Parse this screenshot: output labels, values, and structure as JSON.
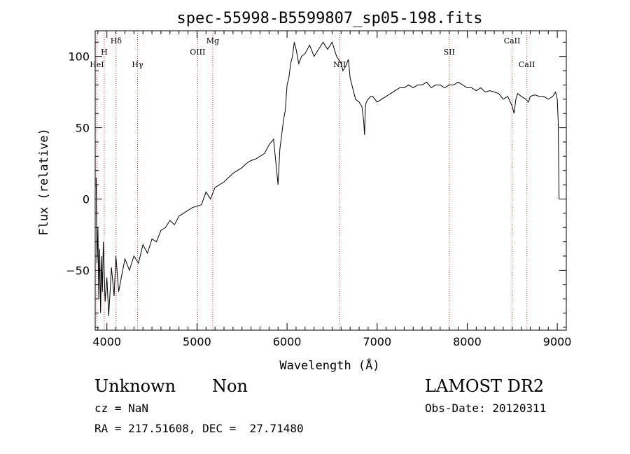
{
  "chart_data": {
    "type": "line",
    "title": "spec-55998-B5599807_sp05-198.fits",
    "xlabel": "Wavelength (Å)",
    "ylabel": "Flux (relative)",
    "xlim": [
      3870,
      9100
    ],
    "ylim": [
      -92,
      118
    ],
    "xticks": [
      4000,
      5000,
      6000,
      7000,
      8000,
      9000
    ],
    "yticks": [
      -50,
      0,
      50,
      100
    ],
    "grid": false,
    "series": [
      {
        "x": [
          3880,
          3890,
          3900,
          3910,
          3920,
          3930,
          3940,
          3950,
          3960,
          3980,
          4000,
          4020,
          4050,
          4080,
          4100,
          4130,
          4160,
          4200,
          4250,
          4300,
          4350,
          4400,
          4450,
          4500,
          4550,
          4600,
          4650,
          4700,
          4750,
          4800,
          4850,
          4900,
          4950,
          5000,
          5050,
          5100,
          5150,
          5200,
          5250,
          5300,
          5350,
          5400,
          5450,
          5500,
          5550,
          5600,
          5650,
          5700,
          5750,
          5800,
          5850,
          5900,
          5920,
          5940,
          5960,
          5980,
          6000,
          6020,
          6040,
          6060,
          6080,
          6100,
          6130,
          6160,
          6200,
          6250,
          6300,
          6350,
          6400,
          6450,
          6500,
          6550,
          6600,
          6620,
          6650,
          6680,
          6700,
          6720,
          6740,
          6760,
          6800,
          6830,
          6850,
          6860,
          6870,
          6880,
          6900,
          6930,
          6950,
          7000,
          7050,
          7100,
          7150,
          7200,
          7250,
          7300,
          7350,
          7400,
          7450,
          7500,
          7550,
          7600,
          7650,
          7700,
          7750,
          7800,
          7850,
          7900,
          7950,
          8000,
          8050,
          8100,
          8150,
          8200,
          8250,
          8300,
          8350,
          8400,
          8450,
          8500,
          8520,
          8540,
          8560,
          8600,
          8650,
          8680,
          8700,
          8750,
          8800,
          8850,
          8900,
          8950,
          8980,
          9000,
          9010,
          9020
        ],
        "y": [
          15,
          -45,
          -20,
          -70,
          -35,
          -80,
          -40,
          -65,
          -30,
          -72,
          -55,
          -82,
          -48,
          -68,
          -40,
          -65,
          -55,
          -42,
          -50,
          -40,
          -45,
          -32,
          -38,
          -28,
          -30,
          -22,
          -20,
          -15,
          -18,
          -12,
          -10,
          -8,
          -6,
          -5,
          -4,
          5,
          0,
          8,
          10,
          12,
          15,
          18,
          20,
          22,
          25,
          27,
          28,
          30,
          32,
          38,
          42,
          10,
          35,
          45,
          55,
          62,
          80,
          85,
          95,
          100,
          110,
          105,
          95,
          100,
          102,
          108,
          100,
          105,
          110,
          105,
          110,
          100,
          95,
          90,
          93,
          98,
          85,
          80,
          75,
          70,
          68,
          65,
          55,
          45,
          65,
          68,
          70,
          72,
          72,
          68,
          70,
          72,
          74,
          76,
          78,
          78,
          80,
          78,
          80,
          80,
          82,
          78,
          80,
          80,
          78,
          80,
          80,
          82,
          80,
          78,
          78,
          76,
          78,
          75,
          76,
          75,
          74,
          70,
          72,
          65,
          60,
          70,
          74,
          72,
          70,
          68,
          72,
          73,
          72,
          72,
          70,
          72,
          75,
          70,
          55,
          0
        ]
      }
    ]
  },
  "lines": [
    {
      "wave": 3889,
      "label": "HeI",
      "row": 3
    },
    {
      "wave": 3970,
      "label": "H",
      "row": 2
    },
    {
      "wave": 4102,
      "label": "Hδ",
      "row": 1
    },
    {
      "wave": 4340,
      "label": "Hγ",
      "row": 3
    },
    {
      "wave": 5007,
      "label": "OIII",
      "row": 2
    },
    {
      "wave": 5175,
      "label": "Mg",
      "row": 1
    },
    {
      "wave": 6583,
      "label": "NII",
      "row": 3
    },
    {
      "wave": 7800,
      "label": "SII",
      "row": 2
    },
    {
      "wave": 8498,
      "label": "CaII",
      "row": 1
    },
    {
      "wave": 8662,
      "label": "CaII",
      "row": 3
    }
  ],
  "info": {
    "class": "Unknown",
    "subclass": "Non",
    "survey": "LAMOST DR2",
    "cz": "cz = NaN",
    "obs_date": "Obs-Date: 20120311",
    "radec": "RA = 217.51608, DEC =  27.71480"
  },
  "colors": {
    "line_marker": "#c0392b",
    "spectrum": "#000000"
  }
}
